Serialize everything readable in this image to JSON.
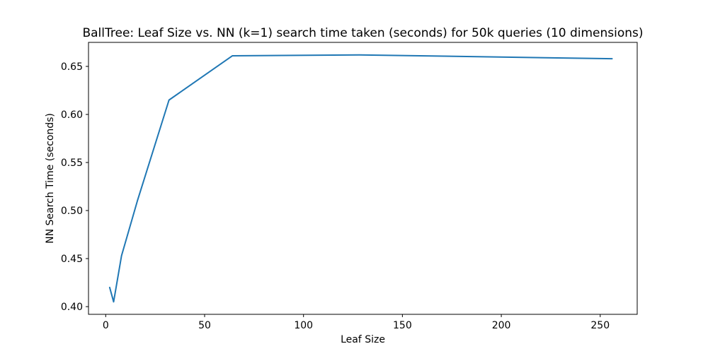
{
  "chart_data": {
    "type": "line",
    "title": "BallTree: Leaf Size vs. NN (k=1) search time taken (seconds) for 50k queries (10 dimensions)",
    "xlabel": "Leaf Size",
    "ylabel": "NN Search Time (seconds)",
    "xlim": [
      -8.7,
      268.7
    ],
    "ylim": [
      0.392,
      0.675
    ],
    "xticks": [
      0,
      50,
      100,
      150,
      200,
      250
    ],
    "yticks": [
      0.4,
      0.45,
      0.5,
      0.55,
      0.6,
      0.65
    ],
    "xtick_labels": [
      "0",
      "50",
      "100",
      "150",
      "200",
      "250"
    ],
    "ytick_labels": [
      "0.40",
      "0.45",
      "0.50",
      "0.55",
      "0.60",
      "0.65"
    ],
    "grid": false,
    "series": [
      {
        "color": "#1f77b4",
        "x": [
          2,
          4,
          8,
          16,
          32,
          64,
          128,
          256
        ],
        "y": [
          0.42,
          0.405,
          0.453,
          0.51,
          0.615,
          0.661,
          0.662,
          0.658
        ]
      }
    ]
  }
}
